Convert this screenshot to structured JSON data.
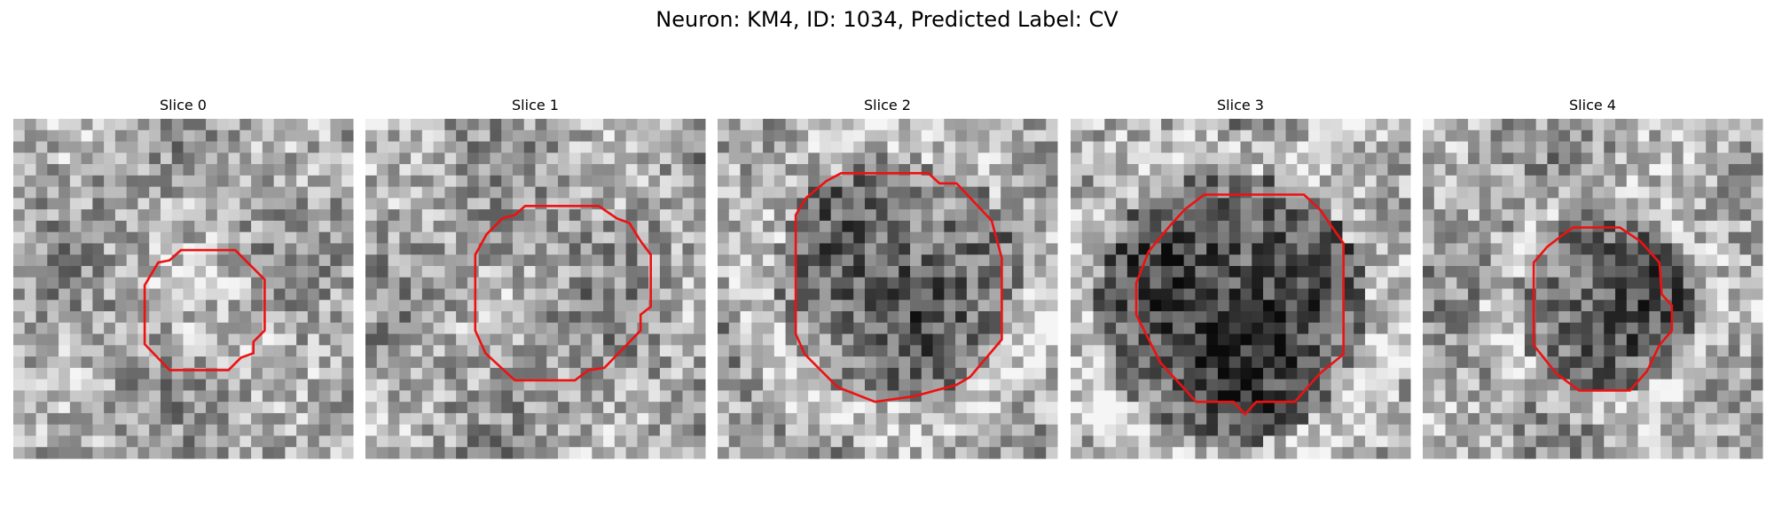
{
  "header": {
    "title": "Neuron: KM4, ID: 1034, Predicted Label: CV"
  },
  "panels": [
    {
      "title": "Slice 0"
    },
    {
      "title": "Slice 1"
    },
    {
      "title": "Slice 2"
    },
    {
      "title": "Slice 3"
    },
    {
      "title": "Slice 4"
    }
  ]
}
